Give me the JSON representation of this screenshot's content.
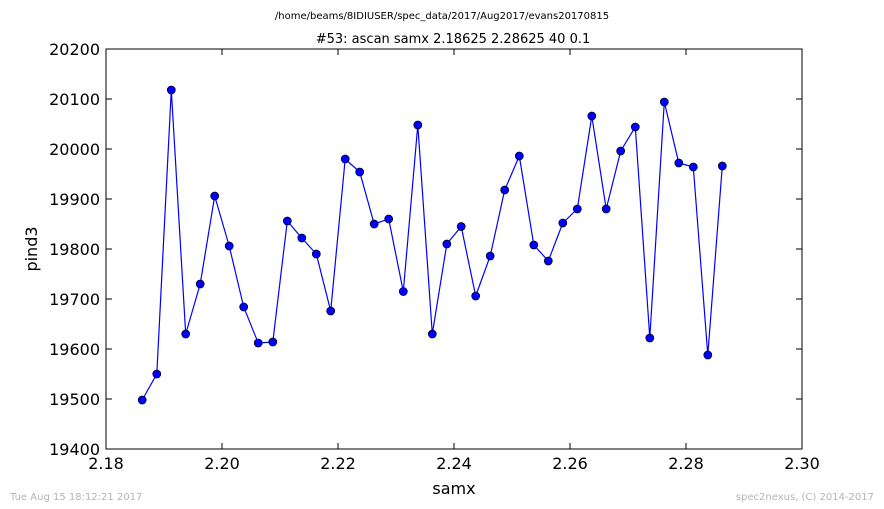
{
  "suptitle": "/home/beams/8IDIUSER/spec_data/2017/Aug2017/evans20170815",
  "footer": {
    "timestamp": "Tue Aug 15 18:12:21 2017",
    "credit": "spec2nexus, (C) 2014-2017"
  },
  "chart_data": {
    "type": "line",
    "title": "#53: ascan  samx 2.18625 2.28625  40 0.1",
    "xlabel": "samx",
    "ylabel": "pind3",
    "xlim": [
      2.18,
      2.3
    ],
    "ylim": [
      19400,
      20200
    ],
    "xticks": [
      "2.18",
      "2.20",
      "2.22",
      "2.24",
      "2.26",
      "2.28",
      "2.30"
    ],
    "yticks": [
      "19400",
      "19500",
      "19600",
      "19700",
      "19800",
      "19900",
      "20000",
      "20100",
      "20200"
    ],
    "grid": false,
    "line_color": "#0000ff",
    "marker_color": "#0000ff",
    "x": [
      2.18625,
      2.18875,
      2.19125,
      2.19375,
      2.19625,
      2.19875,
      2.20125,
      2.20375,
      2.20625,
      2.20875,
      2.21125,
      2.21375,
      2.21625,
      2.21875,
      2.22125,
      2.22375,
      2.22625,
      2.22875,
      2.23125,
      2.23375,
      2.23625,
      2.23875,
      2.24125,
      2.24375,
      2.24625,
      2.24875,
      2.25125,
      2.25375,
      2.25625,
      2.25875,
      2.26125,
      2.26375,
      2.26625,
      2.26875,
      2.27125,
      2.27375,
      2.27625,
      2.27875,
      2.28125,
      2.28375,
      2.28625
    ],
    "y": [
      19498,
      19550,
      20118,
      19630,
      19730,
      19906,
      19806,
      19684,
      19612,
      19614,
      19856,
      19822,
      19790,
      19676,
      19980,
      19954,
      19850,
      19860,
      19715,
      20048,
      19630,
      19810,
      19845,
      19706,
      19786,
      19918,
      19986,
      19808,
      19776,
      19852,
      19880,
      20066,
      19880,
      19996,
      20044,
      19622,
      20094,
      19972,
      19964,
      19588,
      19966
    ]
  }
}
